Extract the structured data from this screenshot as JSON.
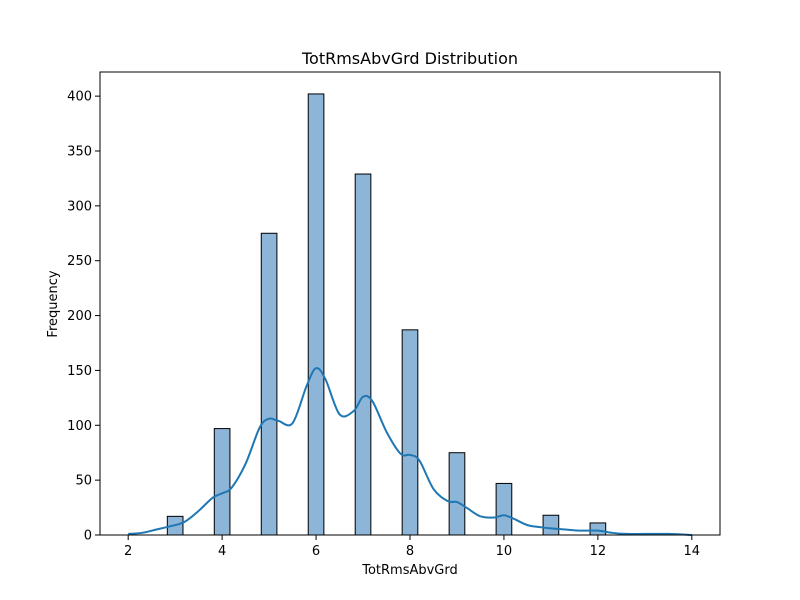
{
  "chart_data": {
    "type": "bar",
    "title": "TotRmsAbvGrd Distribution",
    "xlabel": "TotRmsAbvGrd",
    "ylabel": "Frequency",
    "xlim": [
      1.4,
      14.6
    ],
    "ylim": [
      0,
      422
    ],
    "x_ticks": [
      2,
      4,
      6,
      8,
      10,
      12,
      14
    ],
    "y_ticks": [
      0,
      50,
      100,
      150,
      200,
      250,
      300,
      350,
      400
    ],
    "grid": false,
    "bin_width": 0.3333,
    "categories": [
      3,
      4,
      5,
      6,
      7,
      8,
      9,
      10,
      11,
      12
    ],
    "values": [
      17,
      97,
      275,
      402,
      329,
      187,
      75,
      47,
      18,
      11
    ],
    "kde": {
      "x": [
        2.0,
        2.3,
        2.6,
        2.9,
        3.2,
        3.5,
        3.8,
        4.0,
        4.2,
        4.5,
        4.8,
        5.0,
        5.2,
        5.5,
        5.8,
        6.0,
        6.2,
        6.5,
        6.8,
        7.0,
        7.2,
        7.5,
        7.8,
        8.0,
        8.2,
        8.5,
        8.8,
        9.0,
        9.2,
        9.5,
        9.8,
        10.0,
        10.2,
        10.5,
        10.8,
        11.0,
        11.3,
        11.6,
        12.0,
        12.3,
        12.6,
        13.0,
        13.5,
        14.0
      ],
      "y": [
        1,
        2,
        5,
        8,
        12,
        22,
        34,
        38,
        43,
        65,
        98,
        106,
        104,
        102,
        136,
        152,
        142,
        110,
        113,
        126,
        122,
        94,
        74,
        73,
        68,
        42,
        31,
        30,
        25,
        17,
        16,
        18,
        15,
        9,
        7,
        6,
        5,
        4,
        4,
        2,
        1,
        1,
        1,
        0
      ]
    },
    "bar_color": "#8db5d8",
    "bar_edge": "#000000",
    "kde_color": "#1f77b4"
  }
}
